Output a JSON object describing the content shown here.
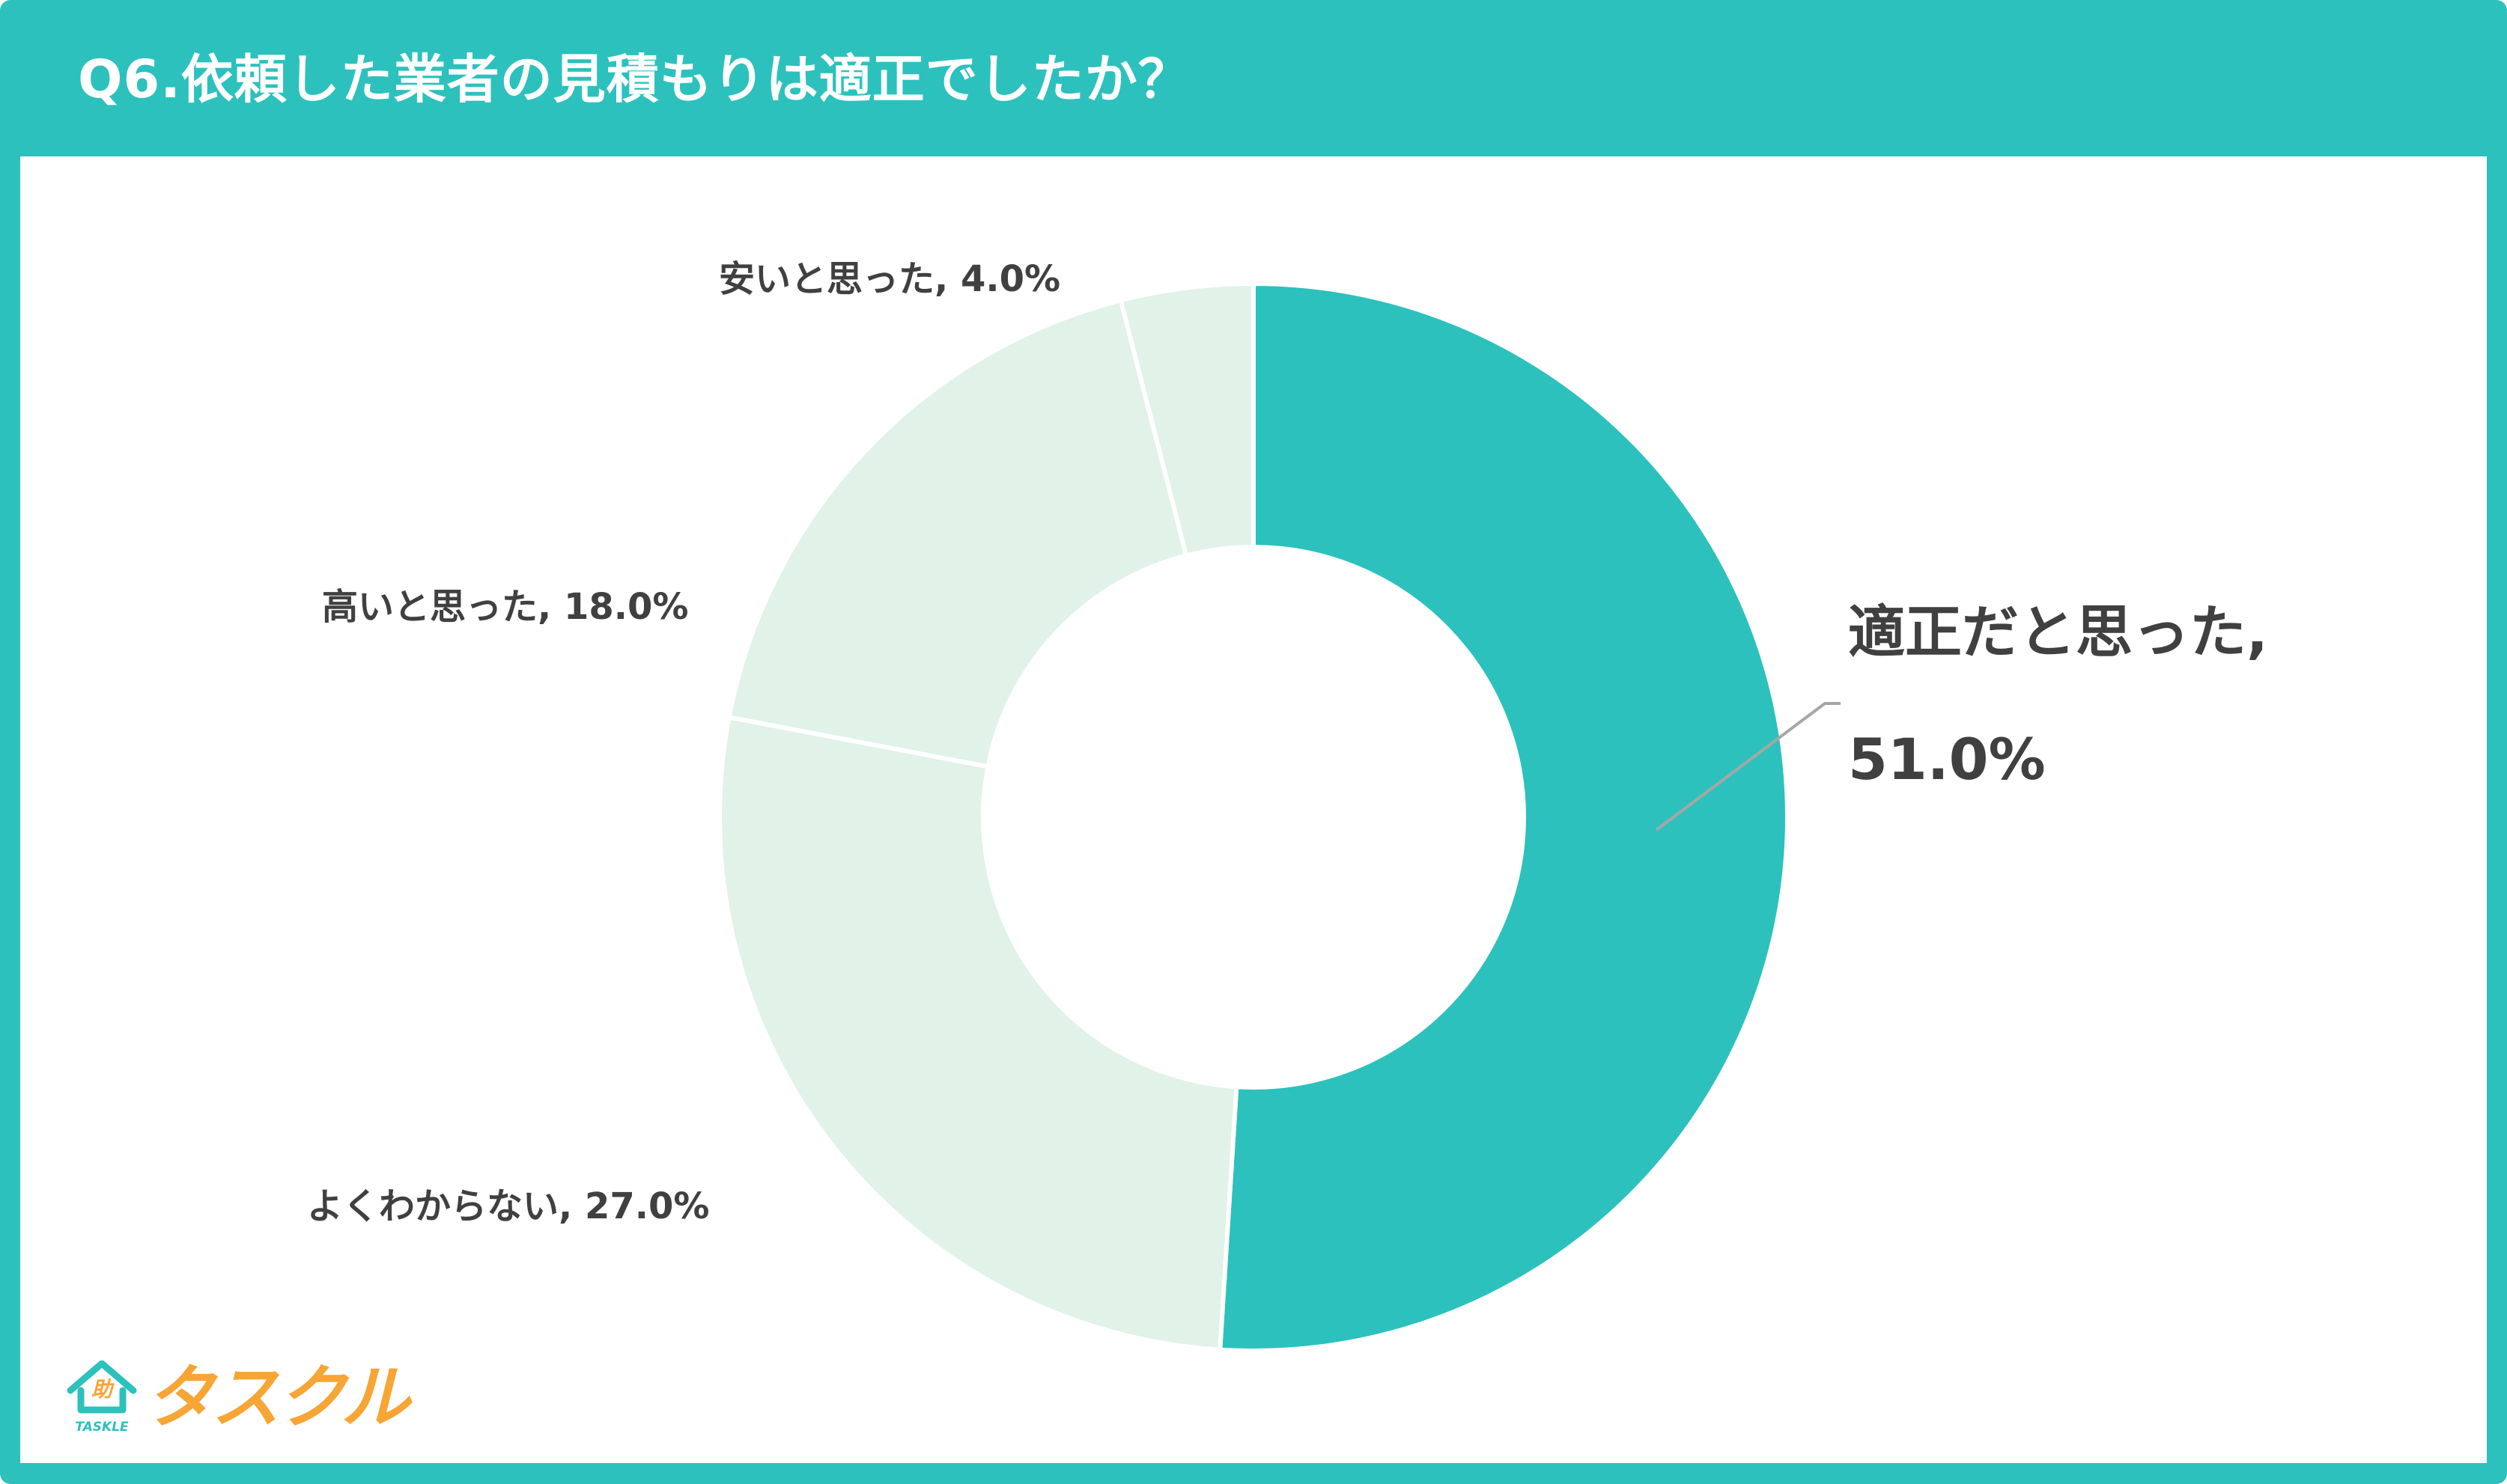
{
  "header": {
    "title": "Q6.依頼した業者の見積もりは適正でしたか？"
  },
  "colors": {
    "brand_teal": "#2cc1bd",
    "slice_light": "#e1f2e8",
    "text_dark": "#404040",
    "leader_line": "#a6a6a6",
    "logo_orange": "#f7a535"
  },
  "labels": {
    "appropriate_line1": "適正だと思った,",
    "appropriate_line2": "51.0%",
    "unsure": "よくわからない, 27.0%",
    "expensive": "高いと思った, 18.0%",
    "cheap": "安いと思った, 4.0%"
  },
  "logo": {
    "kanji": "助",
    "sub": "TASKLE",
    "name": "タスクル"
  },
  "chart_data": {
    "type": "pie",
    "variant": "donut",
    "title": "Q6.依頼した業者の見積もりは適正でしたか？",
    "categories": [
      "適正だと思った",
      "よくわからない",
      "高いと思った",
      "安いと思った"
    ],
    "values": [
      51.0,
      27.0,
      18.0,
      4.0
    ],
    "unit": "%",
    "start_angle": "12 o'clock",
    "direction": "clockwise",
    "slice_colors": [
      "#2cc1bd",
      "#e1f2e8",
      "#e1f2e8",
      "#e1f2e8"
    ],
    "legend": "none (data labels outside slices)",
    "data_labels": [
      "適正だと思った, 51.0%",
      "よくわからない, 27.0%",
      "高いと思った, 18.0%",
      "安いと思った, 4.0%"
    ]
  }
}
